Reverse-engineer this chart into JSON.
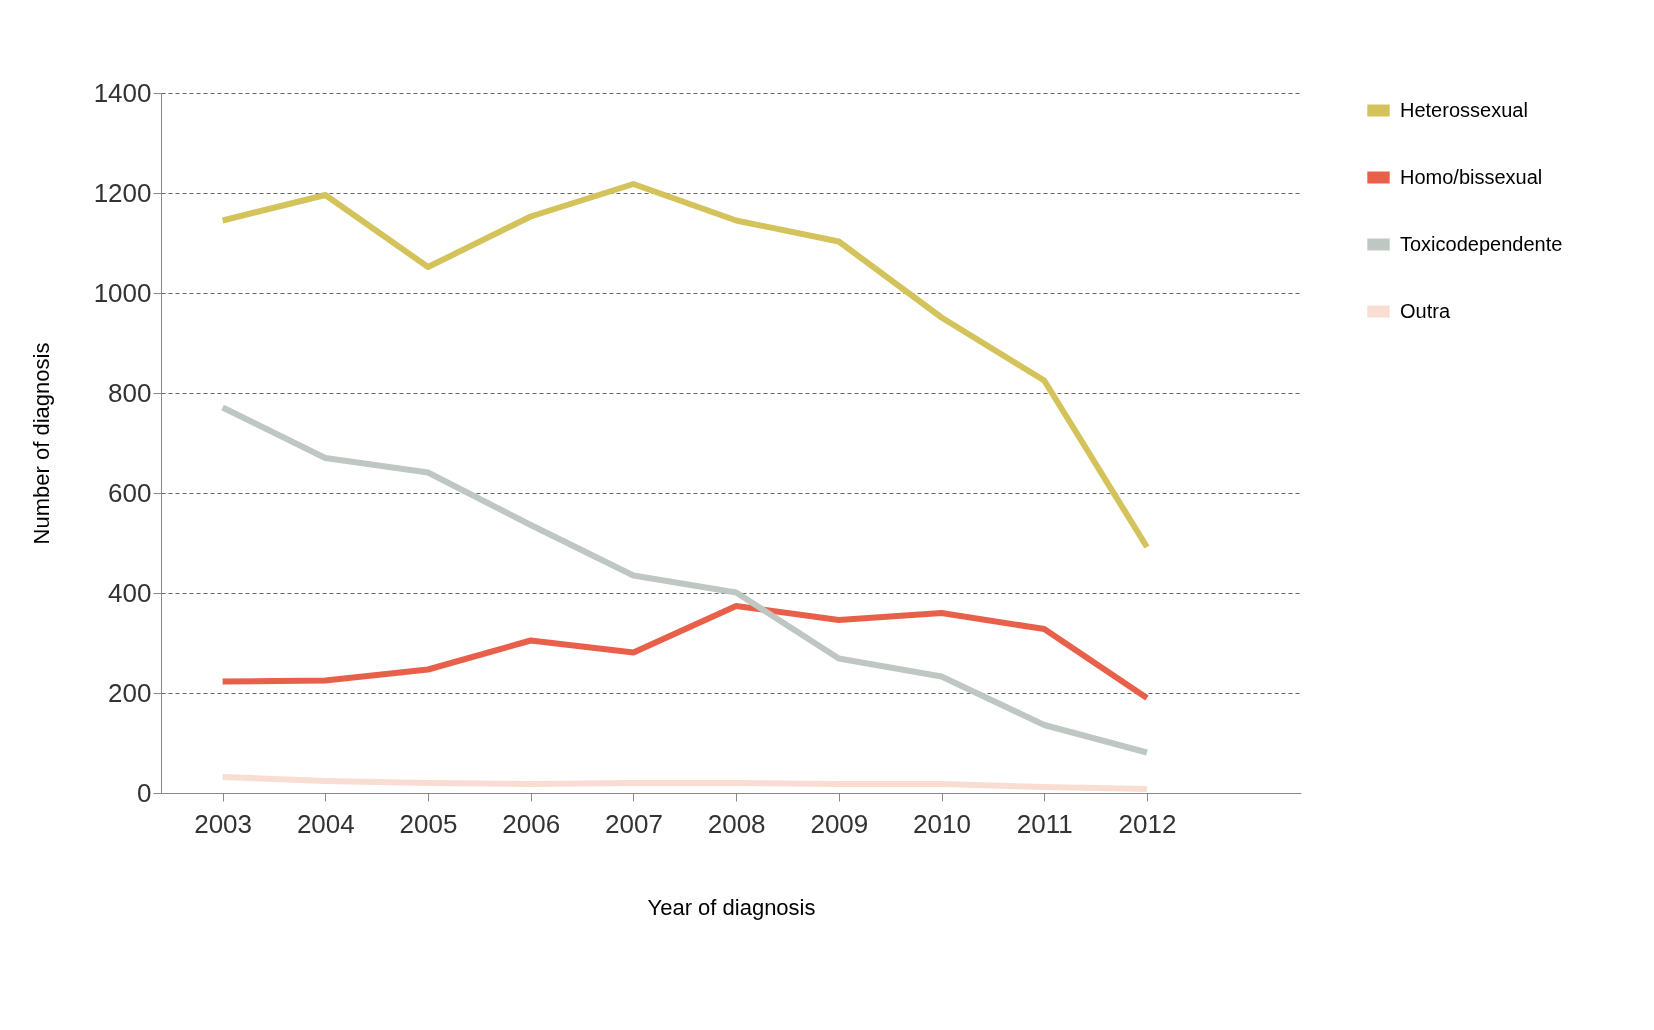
{
  "chart_data": {
    "type": "line",
    "xlabel": "Year of diagnosis",
    "ylabel": "Number  of  diagnosis",
    "categories": [
      "2003",
      "2004",
      "2005",
      "2006",
      "2007",
      "2008",
      "2009",
      "2010",
      "2011",
      "2012"
    ],
    "ylim": [
      0,
      1400
    ],
    "yticks": [
      0,
      200,
      400,
      600,
      800,
      1000,
      1200,
      1400
    ],
    "grid": "y",
    "legend": "right",
    "marker": "none",
    "line_style": "solid",
    "series": [
      {
        "name": "Heterossexual",
        "color": "#d4c35a",
        "values": [
          1145,
          1196,
          1052,
          1153,
          1218,
          1145,
          1103,
          951,
          825,
          492
        ]
      },
      {
        "name": "Homo/bissexual",
        "color": "#e8604a",
        "values": [
          223,
          225,
          247,
          305,
          281,
          374,
          346,
          360,
          328,
          190
        ]
      },
      {
        "name": "Toxicodependente",
        "color": "#bfc7c3",
        "values": [
          771,
          670,
          641,
          536,
          435,
          401,
          269,
          233,
          136,
          81
        ]
      },
      {
        "name": "Outra",
        "color": "#f9ddd3",
        "values": [
          32,
          24,
          20,
          18,
          20,
          20,
          18,
          18,
          12,
          8
        ]
      }
    ]
  }
}
